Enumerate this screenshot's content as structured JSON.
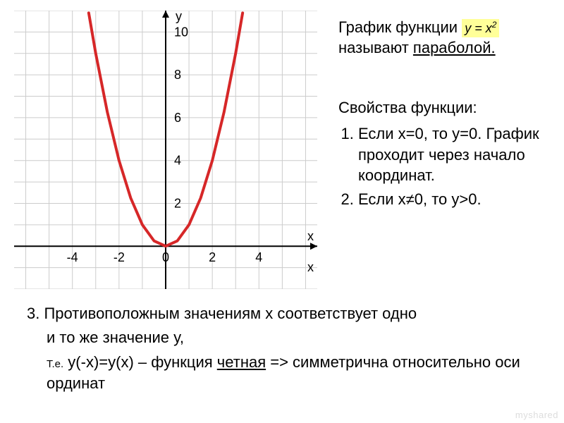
{
  "chart": {
    "type": "line",
    "curve_color": "#d62728",
    "curve_width": 4,
    "axis_color": "#000000",
    "axis_width": 2,
    "grid_color": "#cccccc",
    "grid_width": 1,
    "background_color": "#ffffff",
    "x_label": "x",
    "x_label2": "x",
    "y_label": "y",
    "xlim": [
      -6.5,
      6.5
    ],
    "ylim": [
      -2,
      11
    ],
    "x_ticks": [
      {
        "v": -4,
        "label": "-4"
      },
      {
        "v": -2,
        "label": "-2"
      },
      {
        "v": 0,
        "label": "0"
      },
      {
        "v": 2,
        "label": "2"
      },
      {
        "v": 4,
        "label": "4"
      }
    ],
    "y_ticks": [
      {
        "v": 2,
        "label": "2"
      },
      {
        "v": 4,
        "label": "4"
      },
      {
        "v": 6,
        "label": "6"
      },
      {
        "v": 8,
        "label": "8"
      },
      {
        "v": 10,
        "label": "10"
      }
    ],
    "curve_points_x": [
      -3.3,
      -3,
      -2.5,
      -2,
      -1.5,
      -1,
      -0.5,
      0,
      0.5,
      1,
      1.5,
      2,
      2.5,
      3,
      3.3
    ],
    "label_fontsize": 18,
    "tick_fontsize": 18,
    "tick_color": "#000000"
  },
  "top": {
    "line1_a": "График функции ",
    "formula": "y = x",
    "formula_sup": "2",
    "line2_a": "называют ",
    "line2_u": "параболой."
  },
  "props": {
    "title": "Свойства функции:",
    "item1": "Если х=0, то у=0. График проходит через начало координат.",
    "item2": "Если х≠0, то у>0."
  },
  "bottom": {
    "line1": "3. Противоположным значениям х соответствует одно",
    "line2": "и то же значение у,",
    "line3_small": "Т.е.",
    "line3_rest": " у(-х)=у(х) – функция ",
    "line3_u": "четная",
    "line3_tail": " => симметрична относительно оси ординат"
  },
  "watermark": "myshared"
}
